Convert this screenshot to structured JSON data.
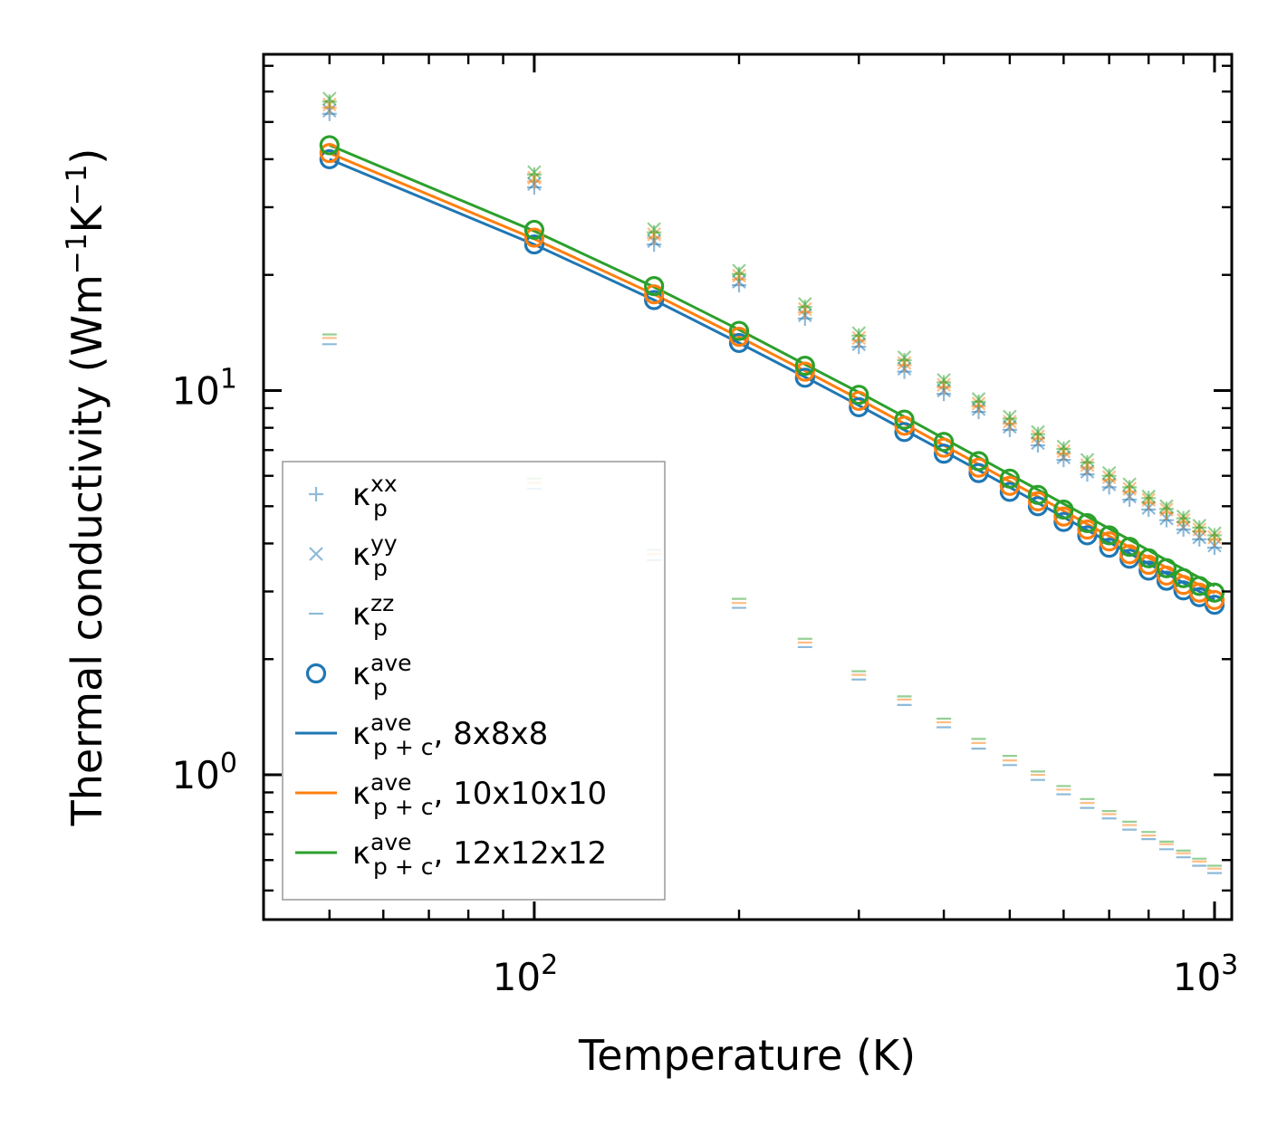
{
  "chart_data": {
    "type": "scatter+line",
    "xscale": "log",
    "yscale": "log",
    "xlabel": "Temperature (K)",
    "ylabel_text": "Thermal conductivity (Wm",
    "ylabel_sup1": "−1",
    "ylabel_mid": "K",
    "ylabel_sup2": "−1",
    "ylabel_close": ")",
    "xlim": [
      40,
      1060
    ],
    "ylim": [
      0.42,
      75
    ],
    "x_ticks": [
      {
        "value": 100,
        "base": "10",
        "exp": "2"
      },
      {
        "value": 1000,
        "base": "10",
        "exp": "3"
      }
    ],
    "y_ticks": [
      {
        "value": 1,
        "base": "10",
        "exp": "0"
      },
      {
        "value": 10,
        "base": "10",
        "exp": "1"
      }
    ],
    "temperatures": [
      50,
      100,
      150,
      200,
      250,
      300,
      350,
      400,
      450,
      500,
      550,
      600,
      650,
      700,
      750,
      800,
      850,
      900,
      950,
      1000
    ],
    "colors": {
      "mesh_8": "#1f77b4",
      "mesh_10": "#ff7f0e",
      "mesh_12": "#2ca02c"
    },
    "meshes": [
      {
        "name": "8x8x8",
        "color": "#1f77b4",
        "kxx": [
          52.5,
          33.8,
          24.0,
          18.8,
          15.4,
          13.0,
          11.2,
          9.8,
          8.8,
          7.9,
          7.2,
          6.6,
          6.05,
          5.6,
          5.2,
          4.9,
          4.6,
          4.35,
          4.1,
          3.9
        ],
        "kyy": [
          53.5,
          34.5,
          24.5,
          19.2,
          15.7,
          13.2,
          11.4,
          10.0,
          8.95,
          8.05,
          7.3,
          6.7,
          6.15,
          5.7,
          5.3,
          4.95,
          4.65,
          4.4,
          4.15,
          3.95
        ],
        "kzz": [
          13.2,
          5.55,
          3.62,
          2.72,
          2.15,
          1.77,
          1.52,
          1.33,
          1.17,
          1.06,
          0.97,
          0.89,
          0.82,
          0.77,
          0.72,
          0.68,
          0.64,
          0.61,
          0.58,
          0.555
        ],
        "kave": [
          40.0,
          24.0,
          17.2,
          13.3,
          10.8,
          9.05,
          7.8,
          6.85,
          6.1,
          5.45,
          5.0,
          4.55,
          4.2,
          3.9,
          3.65,
          3.4,
          3.2,
          3.02,
          2.9,
          2.77
        ],
        "line": [
          40.0,
          24.0,
          17.2,
          13.3,
          10.85,
          9.15,
          7.9,
          6.95,
          6.2,
          5.6,
          5.1,
          4.68,
          4.33,
          4.03,
          3.77,
          3.54,
          3.34,
          3.16,
          3.0,
          2.86
        ]
      },
      {
        "name": "10x10x10",
        "color": "#ff7f0e",
        "kxx": [
          54.5,
          35.0,
          25.0,
          19.5,
          16.0,
          13.5,
          11.65,
          10.2,
          9.1,
          8.2,
          7.5,
          6.85,
          6.3,
          5.85,
          5.45,
          5.1,
          4.8,
          4.55,
          4.3,
          4.1
        ],
        "kyy": [
          55.5,
          35.8,
          25.5,
          19.9,
          16.3,
          13.7,
          11.8,
          10.35,
          9.25,
          8.3,
          7.6,
          6.95,
          6.4,
          5.95,
          5.55,
          5.2,
          4.9,
          4.6,
          4.35,
          4.15
        ],
        "kzz": [
          13.7,
          5.75,
          3.75,
          2.8,
          2.21,
          1.82,
          1.57,
          1.37,
          1.21,
          1.09,
          1.0,
          0.915,
          0.845,
          0.79,
          0.74,
          0.695,
          0.66,
          0.625,
          0.595,
          0.57
        ],
        "kave": [
          41.5,
          25.0,
          17.8,
          13.8,
          11.2,
          9.4,
          8.1,
          7.1,
          6.3,
          5.65,
          5.15,
          4.7,
          4.35,
          4.05,
          3.75,
          3.52,
          3.3,
          3.12,
          2.98,
          2.85
        ],
        "line": [
          41.5,
          24.8,
          17.8,
          13.8,
          11.25,
          9.5,
          8.2,
          7.2,
          6.43,
          5.8,
          5.3,
          4.86,
          4.49,
          4.18,
          3.91,
          3.67,
          3.46,
          3.28,
          3.12,
          2.97
        ]
      },
      {
        "name": "12x12x12",
        "color": "#2ca02c",
        "kxx": [
          56.5,
          36.5,
          25.8,
          20.1,
          16.5,
          13.9,
          12.0,
          10.5,
          9.35,
          8.45,
          7.7,
          7.05,
          6.5,
          6.0,
          5.6,
          5.25,
          4.92,
          4.65,
          4.4,
          4.2
        ],
        "kyy": [
          57.5,
          37.0,
          26.3,
          20.5,
          16.8,
          14.1,
          12.2,
          10.65,
          9.5,
          8.55,
          7.8,
          7.15,
          6.6,
          6.1,
          5.7,
          5.3,
          5.0,
          4.7,
          4.45,
          4.25
        ],
        "kzz": [
          14.0,
          5.9,
          3.85,
          2.87,
          2.26,
          1.86,
          1.6,
          1.4,
          1.24,
          1.12,
          1.02,
          0.935,
          0.865,
          0.805,
          0.755,
          0.71,
          0.67,
          0.635,
          0.605,
          0.58
        ],
        "kave": [
          43.5,
          26.2,
          18.7,
          14.3,
          11.6,
          9.75,
          8.4,
          7.35,
          6.55,
          5.9,
          5.35,
          4.9,
          4.52,
          4.2,
          3.92,
          3.66,
          3.45,
          3.25,
          3.1,
          2.98
        ],
        "line": [
          43.5,
          26.0,
          18.6,
          14.4,
          11.7,
          9.9,
          8.55,
          7.5,
          6.7,
          6.05,
          5.52,
          5.07,
          4.7,
          4.37,
          4.09,
          3.84,
          3.62,
          3.43,
          3.26,
          3.1
        ]
      }
    ],
    "legend": {
      "position": "lower-left",
      "entries": [
        {
          "marker": "plus",
          "base": "κ",
          "sup": "xx",
          "sub": "p",
          "suffix": ""
        },
        {
          "marker": "cross",
          "base": "κ",
          "sup": "yy",
          "sub": "p",
          "suffix": ""
        },
        {
          "marker": "dash",
          "base": "κ",
          "sup": "zz",
          "sub": "p",
          "suffix": ""
        },
        {
          "marker": "circle",
          "base": "κ",
          "sup": "ave",
          "sub": "p",
          "suffix": ""
        },
        {
          "marker": "line-blue",
          "base": "κ",
          "sup": "ave",
          "sub": "p + c",
          "suffix": ", 8x8x8"
        },
        {
          "marker": "line-orange",
          "base": "κ",
          "sup": "ave",
          "sub": "p + c",
          "suffix": ", 10x10x10"
        },
        {
          "marker": "line-green",
          "base": "κ",
          "sup": "ave",
          "sub": "p + c",
          "suffix": ", 12x12x12"
        }
      ]
    }
  }
}
